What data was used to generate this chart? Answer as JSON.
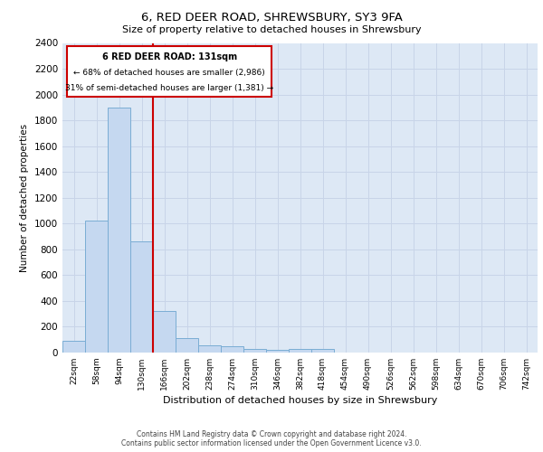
{
  "title": "6, RED DEER ROAD, SHREWSBURY, SY3 9FA",
  "subtitle": "Size of property relative to detached houses in Shrewsbury",
  "xlabel": "Distribution of detached houses by size in Shrewsbury",
  "ylabel": "Number of detached properties",
  "footer_line1": "Contains HM Land Registry data © Crown copyright and database right 2024.",
  "footer_line2": "Contains public sector information licensed under the Open Government Licence v3.0.",
  "bar_labels": [
    "22sqm",
    "58sqm",
    "94sqm",
    "130sqm",
    "166sqm",
    "202sqm",
    "238sqm",
    "274sqm",
    "310sqm",
    "346sqm",
    "382sqm",
    "418sqm",
    "454sqm",
    "490sqm",
    "526sqm",
    "562sqm",
    "598sqm",
    "634sqm",
    "670sqm",
    "706sqm",
    "742sqm"
  ],
  "bar_values": [
    90,
    1020,
    1900,
    860,
    320,
    115,
    55,
    48,
    30,
    20,
    30,
    25,
    0,
    0,
    0,
    0,
    0,
    0,
    0,
    0,
    0
  ],
  "bar_color": "#c5d8f0",
  "bar_edge_color": "#7aadd4",
  "ylim": [
    0,
    2400
  ],
  "yticks": [
    0,
    200,
    400,
    600,
    800,
    1000,
    1200,
    1400,
    1600,
    1800,
    2000,
    2200,
    2400
  ],
  "property_label": "6 RED DEER ROAD: 131sqm",
  "annotation_line1": "← 68% of detached houses are smaller (2,986)",
  "annotation_line2": "31% of semi-detached houses are larger (1,381) →",
  "vline_color": "#cc0000",
  "annotation_box_facecolor": "#ffffff",
  "annotation_box_edgecolor": "#cc0000",
  "grid_color": "#c8d4e8",
  "background_color": "#ffffff",
  "plot_bg_color": "#dde8f5"
}
